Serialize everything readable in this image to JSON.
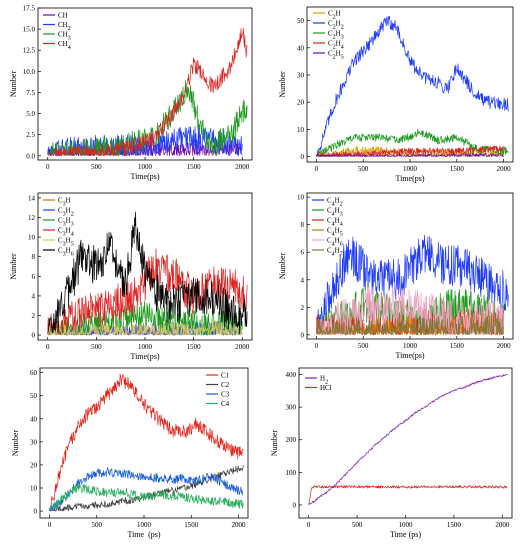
{
  "figure": "Six-panel molecular dynamics species-count plots",
  "chart_data": [
    {
      "id": "a",
      "type": "line",
      "xlabel": "Time(ps)",
      "ylabel": "Number",
      "xlim": [
        -100,
        2100
      ],
      "ylim": [
        -0.5,
        17.5
      ],
      "xticks": [
        0,
        500,
        1000,
        1500,
        2000
      ],
      "yticks": [
        0.0,
        2.5,
        5.0,
        7.5,
        10.0,
        12.5,
        15.0,
        17.5
      ],
      "ytick_labels": [
        "0.0",
        "2.5",
        "5.0",
        "7.5",
        "10.0",
        "12.5",
        "15.0",
        "17.5"
      ],
      "legend_position": "top-left",
      "series": [
        {
          "name": "CH",
          "sub": "",
          "color": "#6a0dad",
          "x": [
            0,
            2000
          ],
          "y": [
            0,
            1
          ],
          "noise": 1
        },
        {
          "name": "CH",
          "sub": "2",
          "color": "#1f3bff",
          "x": [
            0,
            300,
            1000,
            1400,
            1600,
            2000
          ],
          "y": [
            0,
            1,
            1,
            2,
            2,
            1
          ],
          "noise": 1.5
        },
        {
          "name": "CH",
          "sub": "3",
          "color": "#1a9a1a",
          "x": [
            0,
            700,
            1100,
            1450,
            1550,
            1700,
            1900,
            2050
          ],
          "y": [
            0,
            1,
            2,
            8,
            4,
            1,
            3,
            6
          ],
          "noise": 1.5
        },
        {
          "name": "CH",
          "sub": "4",
          "color": "#e02020",
          "x": [
            0,
            700,
            1100,
            1400,
            1500,
            1700,
            1900,
            2000,
            2050
          ],
          "y": [
            0,
            0.5,
            2,
            7,
            11,
            8,
            11,
            15,
            12
          ],
          "noise": 1
        }
      ]
    },
    {
      "id": "b",
      "type": "line",
      "xlabel": "Time(ps)",
      "ylabel": "Number",
      "xlim": [
        -100,
        2100
      ],
      "ylim": [
        -2,
        55
      ],
      "xticks": [
        0,
        500,
        1000,
        1500,
        2000
      ],
      "yticks": [
        0,
        10,
        20,
        30,
        40,
        50
      ],
      "legend_position": "top-left",
      "series": [
        {
          "name": "C",
          "sub": "2",
          "tail": "H",
          "color": "#d8a000",
          "x": [
            0,
            500,
            1000,
            1500,
            2000
          ],
          "y": [
            0,
            2,
            1,
            1,
            1
          ],
          "noise": 2
        },
        {
          "name": "C",
          "sub": "2",
          "tail": "H",
          "tsub": "2",
          "color": "#1f3bff",
          "x": [
            0,
            200,
            400,
            650,
            750,
            850,
            1000,
            1150,
            1250,
            1400,
            1500,
            1650,
            1800,
            2050
          ],
          "y": [
            0,
            20,
            35,
            45,
            50,
            48,
            35,
            29,
            28,
            25,
            33,
            25,
            20,
            19
          ],
          "noise": 2.5
        },
        {
          "name": "C",
          "sub": "2",
          "tail": "H",
          "tsub": "3",
          "color": "#1a9a1a",
          "x": [
            0,
            200,
            400,
            700,
            900,
            1100,
            1300,
            1500,
            1700,
            2050
          ],
          "y": [
            0,
            4,
            7,
            7,
            6,
            9,
            6,
            7,
            3,
            2
          ],
          "noise": 1.5
        },
        {
          "name": "C",
          "sub": "2",
          "tail": "H",
          "tsub": "4",
          "color": "#e02020",
          "x": [
            0,
            500,
            1000,
            1500,
            2000
          ],
          "y": [
            0,
            1,
            2,
            2,
            3
          ],
          "noise": 1.2
        },
        {
          "name": "C",
          "sub": "2",
          "tail": "H",
          "tsub": "5",
          "color": "#6a0dad",
          "x": [
            0,
            2000
          ],
          "y": [
            0,
            0.5
          ],
          "noise": 0.8
        }
      ]
    },
    {
      "id": "c",
      "type": "line",
      "xlabel": "Time(ps)",
      "ylabel": "Number",
      "xlim": [
        -100,
        2100
      ],
      "ylim": [
        -0.5,
        14.5
      ],
      "xticks": [
        0,
        500,
        1000,
        1500,
        2000
      ],
      "yticks": [
        0,
        2,
        4,
        6,
        8,
        10,
        12,
        14
      ],
      "legend_position": "top-left",
      "series": [
        {
          "name": "C",
          "sub": "3",
          "tail": "H",
          "color": "#e07000",
          "x": [
            0,
            2000
          ],
          "y": [
            0,
            0.5
          ],
          "noise": 1
        },
        {
          "name": "C",
          "sub": "3",
          "tail": "H",
          "tsub": "2",
          "color": "#1f3bff",
          "x": [
            0,
            2000
          ],
          "y": [
            0,
            0.5
          ],
          "noise": 1
        },
        {
          "name": "C",
          "sub": "3",
          "tail": "H",
          "tsub": "3",
          "color": "#1a9a1a",
          "x": [
            0,
            500,
            1000,
            1500,
            2000
          ],
          "y": [
            0,
            1,
            2,
            1,
            1
          ],
          "noise": 1.5
        },
        {
          "name": "C",
          "sub": "3",
          "tail": "H",
          "tsub": "4",
          "color": "#e02020",
          "x": [
            0,
            300,
            600,
            900,
            1100,
            1300,
            1500,
            1700,
            1900,
            2050
          ],
          "y": [
            0,
            2,
            3,
            4,
            7,
            6,
            4,
            5,
            5,
            4
          ],
          "noise": 2
        },
        {
          "name": "C",
          "sub": "3",
          "tail": "H",
          "tsub": "5",
          "color": "#c8c870",
          "x": [
            0,
            2000
          ],
          "y": [
            0,
            0.5
          ],
          "noise": 1
        },
        {
          "name": "C",
          "sub": "3",
          "tail": "H",
          "tsub": "6",
          "color": "#000000",
          "x": [
            0,
            200,
            350,
            500,
            650,
            800,
            900,
            1050,
            1250,
            1500,
            1700,
            1900,
            2050
          ],
          "y": [
            0,
            4,
            8,
            7,
            9,
            5,
            11,
            5,
            3,
            4,
            4,
            2,
            2
          ],
          "noise": 2
        }
      ]
    },
    {
      "id": "d",
      "type": "line",
      "xlabel": "Time(ps)",
      "ylabel": "Number",
      "xlim": [
        -100,
        2100
      ],
      "ylim": [
        -0.3,
        10.3
      ],
      "xticks": [
        0,
        500,
        1000,
        1500,
        2000
      ],
      "yticks": [
        0,
        2,
        4,
        6,
        8,
        10
      ],
      "legend_position": "top-left",
      "series": [
        {
          "name": "C",
          "sub": "4",
          "tail": "H",
          "tsub": "2",
          "color": "#1f3bff",
          "x": [
            0,
            150,
            350,
            600,
            900,
            1150,
            1400,
            1600,
            1800,
            2050
          ],
          "y": [
            0,
            3,
            6,
            4,
            4,
            6,
            5,
            5,
            4,
            3
          ],
          "noise": 1.5
        },
        {
          "name": "C",
          "sub": "4",
          "tail": "H",
          "tsub": "3",
          "color": "#1a9a1a",
          "x": [
            0,
            500,
            1000,
            1500,
            2000
          ],
          "y": [
            0,
            2,
            1,
            2,
            1
          ],
          "noise": 1.5
        },
        {
          "name": "C",
          "sub": "4",
          "tail": "H",
          "tsub": "4",
          "color": "#e02020",
          "x": [
            0,
            2000
          ],
          "y": [
            0,
            0.5
          ],
          "noise": 1.5
        },
        {
          "name": "C",
          "sub": "4",
          "tail": "H",
          "tsub": "5",
          "color": "#e07000",
          "x": [
            0,
            2000
          ],
          "y": [
            0,
            0.5
          ],
          "noise": 1.2
        },
        {
          "name": "C",
          "sub": "4",
          "tail": "H",
          "tsub": "6",
          "color": "#f0a0c0",
          "x": [
            0,
            500,
            1000,
            1500,
            2000
          ],
          "y": [
            0,
            2,
            2,
            1,
            1
          ],
          "noise": 1.5
        },
        {
          "name": "C",
          "sub": "4",
          "tail": "H",
          "tsub": "7",
          "color": "#7a7a40",
          "x": [
            0,
            2000
          ],
          "y": [
            0,
            0.5
          ],
          "noise": 1
        }
      ]
    },
    {
      "id": "e",
      "type": "line",
      "xlabel": "Time  (ps)",
      "ylabel": "Number",
      "xlim": [
        -100,
        2100
      ],
      "ylim": [
        -3,
        62
      ],
      "xticks": [
        0,
        500,
        1000,
        1500,
        2000
      ],
      "yticks": [
        0,
        10,
        20,
        30,
        40,
        50,
        60
      ],
      "legend_position": "top-right",
      "series": [
        {
          "name": "C1",
          "sub": "",
          "color": "#e8251a",
          "x": [
            0,
            100,
            200,
            350,
            500,
            650,
            750,
            850,
            1000,
            1150,
            1300,
            1450,
            1550,
            1700,
            1850,
            2000,
            2050
          ],
          "y": [
            0,
            15,
            28,
            40,
            45,
            52,
            57,
            55,
            46,
            40,
            35,
            34,
            38,
            33,
            28,
            25,
            27
          ],
          "noise": 3
        },
        {
          "name": "C2",
          "sub": "",
          "color": "#404040",
          "x": [
            0,
            300,
            600,
            900,
            1100,
            1300,
            1500,
            1700,
            1900,
            2050
          ],
          "y": [
            0,
            2,
            3,
            5,
            7,
            9,
            11,
            14,
            17,
            19
          ],
          "noise": 1.5
        },
        {
          "name": "C3",
          "sub": "",
          "color": "#1a5fd8",
          "x": [
            0,
            150,
            300,
            450,
            600,
            800,
            1000,
            1200,
            1400,
            1550,
            1700,
            1900,
            2050
          ],
          "y": [
            0,
            5,
            12,
            16,
            17,
            16,
            15,
            14,
            14,
            13,
            15,
            11,
            8
          ],
          "noise": 2
        },
        {
          "name": "C4",
          "sub": "",
          "color": "#2ab060",
          "x": [
            0,
            150,
            300,
            450,
            600,
            800,
            1000,
            1200,
            1400,
            1600,
            1800,
            2050
          ],
          "y": [
            0,
            6,
            10,
            9,
            8,
            8,
            6,
            7,
            6,
            5,
            4,
            3
          ],
          "noise": 2
        }
      ]
    },
    {
      "id": "f",
      "type": "line",
      "xlabel": "Time (ps)",
      "ylabel": "Number",
      "xlim": [
        -100,
        2100
      ],
      "ylim": [
        -40,
        420
      ],
      "xticks": [
        0,
        500,
        1000,
        1500,
        2000
      ],
      "yticks": [
        0,
        100,
        200,
        300,
        400
      ],
      "legend_position": "top-left",
      "series": [
        {
          "name": "H",
          "sub": "2",
          "color": "#8a1fb8",
          "x": [
            0,
            50,
            100,
            200,
            300,
            400,
            500,
            600,
            700,
            800,
            900,
            1000,
            1100,
            1200,
            1300,
            1400,
            1500,
            1600,
            1700,
            1800,
            1900,
            2000,
            2050
          ],
          "y": [
            0,
            10,
            22,
            42,
            68,
            100,
            130,
            158,
            188,
            212,
            238,
            258,
            283,
            300,
            320,
            338,
            352,
            360,
            372,
            382,
            390,
            397,
            400
          ],
          "noise": 3
        },
        {
          "name": "HCl",
          "sub": "",
          "color": "#e8251a",
          "x": [
            0,
            30,
            60,
            100,
            500,
            1000,
            1500,
            2000,
            2050
          ],
          "y": [
            0,
            50,
            57,
            55,
            56,
            55,
            56,
            55,
            55
          ],
          "noise": 4
        }
      ]
    }
  ]
}
